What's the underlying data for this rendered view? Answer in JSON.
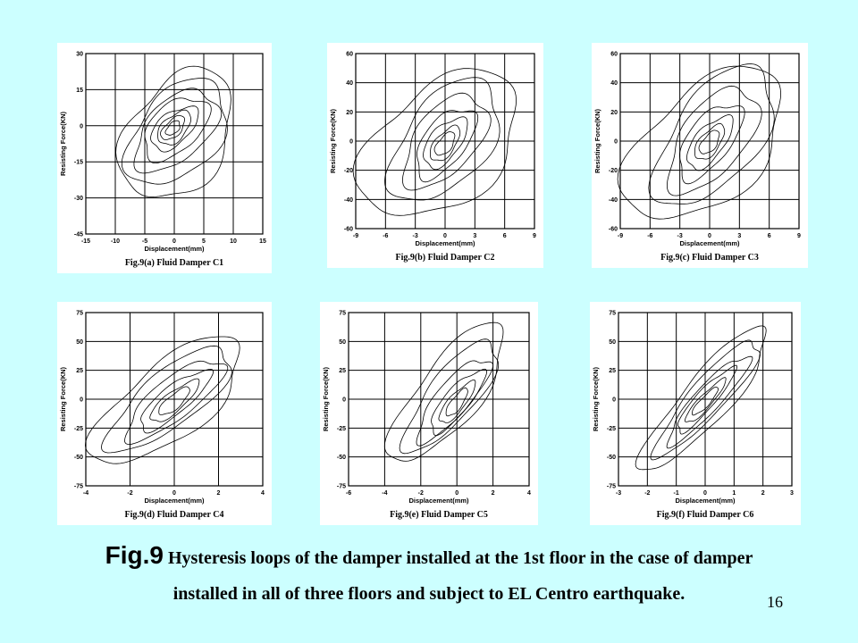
{
  "caption": {
    "prefix": "Fig.9",
    "line1": " Hysteresis loops of the damper installed at the 1st floor in the case of damper",
    "line2": "installed in all of three floors and subject to EL Centro earthquake."
  },
  "page_number": "16",
  "colors": {
    "background": "#ccffff",
    "panel": "#ffffff",
    "ink": "#000000"
  },
  "chart_data": [
    {
      "type": "line",
      "subtype": "hysteresis-loop",
      "panel_label": "Fig.9(a) Fluid Damper C1",
      "xlabel": "Displacement(mm)",
      "ylabel": "Resisting Force(KN)",
      "xlim": [
        -15,
        15
      ],
      "ylim": [
        -45,
        30
      ],
      "xticks": [
        -15,
        -10,
        -5,
        0,
        5,
        10,
        15
      ],
      "yticks": [
        -45,
        -30,
        -15,
        0,
        15,
        30
      ],
      "grid": true,
      "loops": [
        {
          "amp_x": 9.5,
          "amp_y": 27,
          "cx": 0.5,
          "cy": -4,
          "phase_deg": 70
        },
        {
          "amp_x": 8.5,
          "amp_y": 22,
          "cx": 0.5,
          "cy": -3,
          "phase_deg": 65
        },
        {
          "amp_x": 7,
          "amp_y": 17,
          "cx": 0.3,
          "cy": -2,
          "phase_deg": 60
        },
        {
          "amp_x": 5.5,
          "amp_y": 13,
          "cx": 0.2,
          "cy": -1,
          "phase_deg": 62
        },
        {
          "amp_x": 4,
          "amp_y": 9,
          "cx": 0,
          "cy": -1,
          "phase_deg": 58
        },
        {
          "amp_x": 2.8,
          "amp_y": 7,
          "cx": 0,
          "cy": -1,
          "phase_deg": 60
        },
        {
          "amp_x": 2,
          "amp_y": 5,
          "cx": -0.2,
          "cy": -1,
          "phase_deg": 55
        },
        {
          "amp_x": 1.2,
          "amp_y": 3,
          "cx": -0.2,
          "cy": -1,
          "phase_deg": 60
        }
      ]
    },
    {
      "type": "line",
      "subtype": "hysteresis-loop",
      "panel_label": "Fig.9(b) Fluid Damper C2",
      "xlabel": "Displacement(mm)",
      "ylabel": "Resisting Force(KN)",
      "xlim": [
        -9,
        9
      ],
      "ylim": [
        -60,
        60
      ],
      "xticks": [
        -9,
        -6,
        -3,
        0,
        3,
        6,
        9
      ],
      "yticks": [
        -60,
        -40,
        -20,
        0,
        20,
        40,
        60
      ],
      "grid": true,
      "loops": [
        {
          "amp_x": 8,
          "amp_y": 50,
          "cx": -0.5,
          "cy": -3,
          "phase_deg": 65
        },
        {
          "amp_x": 5.5,
          "amp_y": 42,
          "cx": 0,
          "cy": 0,
          "phase_deg": 60
        },
        {
          "amp_x": 4.2,
          "amp_y": 32,
          "cx": 0,
          "cy": 0,
          "phase_deg": 58
        },
        {
          "amp_x": 3,
          "amp_y": 24,
          "cx": 0,
          "cy": -1,
          "phase_deg": 55
        },
        {
          "amp_x": 2.2,
          "amp_y": 17,
          "cx": 0,
          "cy": -1,
          "phase_deg": 55
        },
        {
          "amp_x": 1.5,
          "amp_y": 12,
          "cx": 0,
          "cy": -2,
          "phase_deg": 52
        },
        {
          "amp_x": 1,
          "amp_y": 8,
          "cx": 0,
          "cy": -2,
          "phase_deg": 55
        }
      ]
    },
    {
      "type": "line",
      "subtype": "hysteresis-loop",
      "panel_label": "Fig.9(c) Fluid Damper C3",
      "xlabel": "Displacement(mm)",
      "ylabel": "Resisting Force(KN)",
      "xlim": [
        -9,
        9
      ],
      "ylim": [
        -60,
        60
      ],
      "xticks": [
        -9,
        -6,
        -3,
        0,
        3,
        6,
        9
      ],
      "yticks": [
        -60,
        -40,
        -20,
        0,
        20,
        40,
        60
      ],
      "grid": true,
      "loops": [
        {
          "amp_x": 8,
          "amp_y": 52,
          "cx": -0.5,
          "cy": -3,
          "phase_deg": 60
        },
        {
          "amp_x": 6,
          "amp_y": 48,
          "cx": 0.5,
          "cy": 3,
          "phase_deg": 55
        },
        {
          "amp_x": 4.5,
          "amp_y": 36,
          "cx": 0.3,
          "cy": 1,
          "phase_deg": 55
        },
        {
          "amp_x": 3.2,
          "amp_y": 26,
          "cx": 0,
          "cy": 0,
          "phase_deg": 52
        },
        {
          "amp_x": 2.3,
          "amp_y": 18,
          "cx": 0,
          "cy": -1,
          "phase_deg": 50
        },
        {
          "amp_x": 1.5,
          "amp_y": 12,
          "cx": 0,
          "cy": -1,
          "phase_deg": 52
        },
        {
          "amp_x": 1,
          "amp_y": 8,
          "cx": 0,
          "cy": -1,
          "phase_deg": 55
        }
      ]
    },
    {
      "type": "line",
      "subtype": "hysteresis-loop",
      "panel_label": "Fig.9(d) Fluid Damper C4",
      "xlabel": "Displacement(mm)",
      "ylabel": "Resisting Force(KN)",
      "xlim": [
        -4,
        4
      ],
      "ylim": [
        -75,
        75
      ],
      "xticks": [
        -4,
        -2,
        0,
        2,
        4
      ],
      "yticks": [
        -75,
        -50,
        -25,
        0,
        25,
        50,
        75
      ],
      "grid": true,
      "loops": [
        {
          "amp_x": 3.4,
          "amp_y": 55,
          "cx": -0.3,
          "cy": -2,
          "phase_deg": 45
        },
        {
          "amp_x": 2.8,
          "amp_y": 45,
          "cx": -0.2,
          "cy": 0,
          "phase_deg": 40
        },
        {
          "amp_x": 2.2,
          "amp_y": 35,
          "cx": 0,
          "cy": 0,
          "phase_deg": 38
        },
        {
          "amp_x": 1.6,
          "amp_y": 26,
          "cx": 0,
          "cy": -1,
          "phase_deg": 35
        },
        {
          "amp_x": 1.1,
          "amp_y": 18,
          "cx": 0,
          "cy": -2,
          "phase_deg": 35
        },
        {
          "amp_x": 0.7,
          "amp_y": 12,
          "cx": 0,
          "cy": -2,
          "phase_deg": 38
        }
      ]
    },
    {
      "type": "line",
      "subtype": "hysteresis-loop",
      "panel_label": "Fig.9(e) Fluid Damper C5",
      "xlabel": "Displacement(mm)",
      "ylabel": "Resisting Force(KN)",
      "xlim": [
        -6,
        4
      ],
      "ylim": [
        -75,
        75
      ],
      "xticks": [
        -6,
        -4,
        -2,
        0,
        2,
        4
      ],
      "yticks": [
        -75,
        -50,
        -25,
        0,
        25,
        50,
        75
      ],
      "grid": true,
      "loops": [
        {
          "amp_x": 3.2,
          "amp_y": 60,
          "cx": -0.5,
          "cy": 5,
          "phase_deg": 40
        },
        {
          "amp_x": 2.6,
          "amp_y": 48,
          "cx": -0.3,
          "cy": 3,
          "phase_deg": 38
        },
        {
          "amp_x": 2,
          "amp_y": 36,
          "cx": -0.2,
          "cy": 0,
          "phase_deg": 35
        },
        {
          "amp_x": 1.5,
          "amp_y": 27,
          "cx": 0,
          "cy": -2,
          "phase_deg": 35
        },
        {
          "amp_x": 1,
          "amp_y": 18,
          "cx": 0,
          "cy": -3,
          "phase_deg": 35
        },
        {
          "amp_x": 0.6,
          "amp_y": 12,
          "cx": 0,
          "cy": -3,
          "phase_deg": 38
        }
      ]
    },
    {
      "type": "line",
      "subtype": "hysteresis-loop",
      "panel_label": "Fig.9(f) Fluid Damper C6",
      "xlabel": "Displacement(mm)",
      "ylabel": "Resisting Force(KN)",
      "xlim": [
        -3,
        3
      ],
      "ylim": [
        -75,
        75
      ],
      "xticks": [
        -3,
        -2,
        -1,
        0,
        1,
        2,
        3
      ],
      "yticks": [
        -75,
        -50,
        -25,
        0,
        25,
        50,
        75
      ],
      "grid": true,
      "loops": [
        {
          "amp_x": 2.2,
          "amp_y": 62,
          "cx": 0,
          "cy": 0,
          "phase_deg": 28
        },
        {
          "amp_x": 1.8,
          "amp_y": 50,
          "cx": 0.1,
          "cy": 2,
          "phase_deg": 26
        },
        {
          "amp_x": 1.4,
          "amp_y": 38,
          "cx": 0.1,
          "cy": 0,
          "phase_deg": 25
        },
        {
          "amp_x": 1,
          "amp_y": 28,
          "cx": 0,
          "cy": -1,
          "phase_deg": 25
        },
        {
          "amp_x": 0.7,
          "amp_y": 19,
          "cx": 0,
          "cy": -2,
          "phase_deg": 25
        },
        {
          "amp_x": 0.45,
          "amp_y": 12,
          "cx": 0,
          "cy": -2,
          "phase_deg": 28
        }
      ]
    }
  ]
}
